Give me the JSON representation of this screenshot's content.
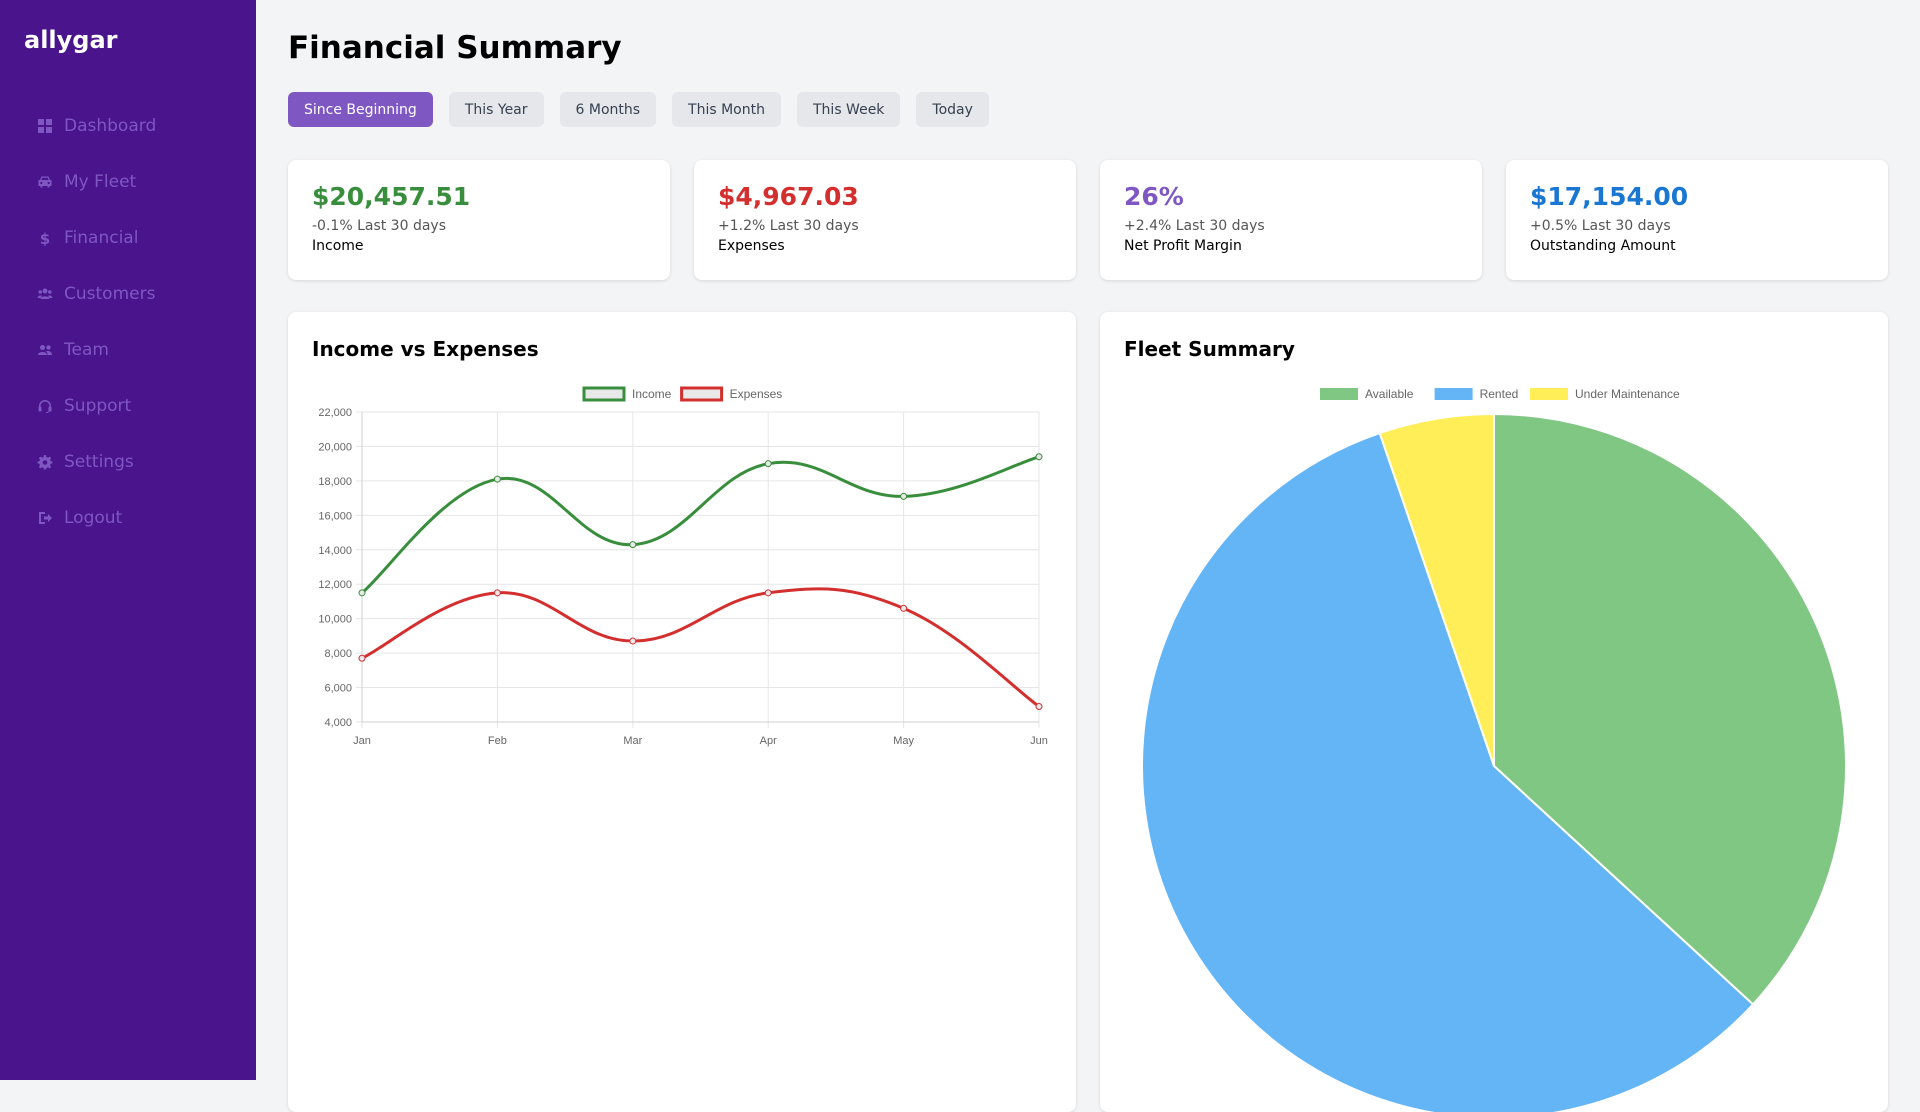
{
  "app": {
    "brand": "allygar"
  },
  "sidebar": {
    "items": [
      {
        "label": "Dashboard",
        "icon": "dashboard-icon"
      },
      {
        "label": "My Fleet",
        "icon": "car-icon"
      },
      {
        "label": "Financial",
        "icon": "dollar-icon"
      },
      {
        "label": "Customers",
        "icon": "users-icon"
      },
      {
        "label": "Team",
        "icon": "user-friends-icon"
      },
      {
        "label": "Support",
        "icon": "headset-icon"
      },
      {
        "label": "Settings",
        "icon": "gear-icon"
      },
      {
        "label": "Logout",
        "icon": "logout-icon"
      }
    ]
  },
  "header": {
    "title": "Financial Summary"
  },
  "filters": {
    "items": [
      "Since Beginning",
      "This Year",
      "6 Months",
      "This Month",
      "This Week",
      "Today"
    ],
    "active": "Since Beginning"
  },
  "stats": [
    {
      "value": "$20,457.51",
      "change": "-0.1% Last 30 days",
      "label": "Income",
      "color": "#388e3c"
    },
    {
      "value": "$4,967.03",
      "change": "+1.2% Last 30 days",
      "label": "Expenses",
      "color": "#d32f2f"
    },
    {
      "value": "26%",
      "change": "+2.4% Last 30 days",
      "label": "Net Profit Margin",
      "color": "#7e57c2"
    },
    {
      "value": "$17,154.00",
      "change": "+0.5% Last 30 days",
      "label": "Outstanding Amount",
      "color": "#1976d2"
    }
  ],
  "panels": {
    "income_expenses_title": "Income vs Expenses",
    "fleet_summary_title": "Fleet Summary"
  },
  "colors": {
    "sidebar_bg": "#4a148c",
    "accent": "#7e57c2",
    "income": "#388e3c",
    "expenses": "#d32f2f",
    "available": "#81c784",
    "rented": "#64b5f6",
    "maintenance": "#ffee58"
  },
  "chart_data": [
    {
      "type": "line",
      "title": "Income vs Expenses",
      "categories": [
        "Jan",
        "Feb",
        "Mar",
        "Apr",
        "May",
        "Jun"
      ],
      "series": [
        {
          "name": "Income",
          "values": [
            11500,
            18100,
            14300,
            19000,
            17100,
            19400
          ],
          "color": "#388e3c"
        },
        {
          "name": "Expenses",
          "values": [
            7700,
            11500,
            8700,
            11500,
            10600,
            4900
          ],
          "color": "#d32f2f"
        }
      ],
      "ylim": [
        4000,
        22000
      ],
      "yticks": [
        "22,000",
        "20,000",
        "18,000",
        "16,000",
        "14,000",
        "12,000",
        "10,000",
        "8,000",
        "6,000",
        "4,000"
      ],
      "legend": "top",
      "grid": true
    },
    {
      "type": "pie",
      "title": "Fleet Summary",
      "series": [
        {
          "name": "Available",
          "value": 35,
          "color": "#81c784"
        },
        {
          "name": "Rented",
          "value": 55,
          "color": "#64b5f6"
        },
        {
          "name": "Under Maintenance",
          "value": 5,
          "color": "#ffee58"
        }
      ],
      "legend": "top"
    }
  ]
}
